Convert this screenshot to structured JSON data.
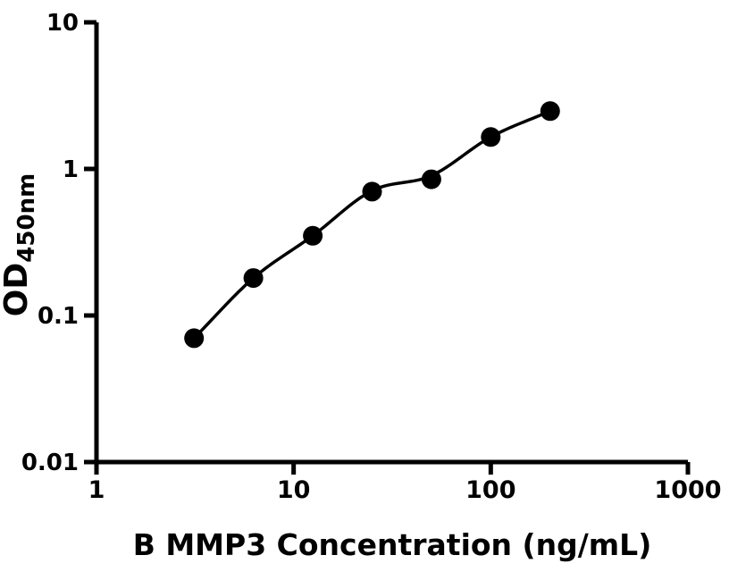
{
  "chart_data": {
    "type": "scatter",
    "title": "",
    "xlabel": "B MMP3 Concentration (ng/mL)",
    "ylabel_main": "OD",
    "ylabel_sub": "450nm",
    "x_scale": "log10",
    "y_scale": "log10",
    "xlim": [
      1,
      1000
    ],
    "ylim": [
      0.01,
      10
    ],
    "grid": false,
    "legend": "none",
    "x_ticks": [
      {
        "value": 1,
        "label": "1"
      },
      {
        "value": 10,
        "label": "10"
      },
      {
        "value": 100,
        "label": "100"
      },
      {
        "value": 1000,
        "label": "1000"
      }
    ],
    "y_ticks": [
      {
        "value": 10,
        "label": "10"
      },
      {
        "value": 1,
        "label": "1"
      },
      {
        "value": 0.1,
        "label": "0.1"
      },
      {
        "value": 0.01,
        "label": "0.01"
      }
    ],
    "series": [
      {
        "name": "standard-curve-points",
        "marker": "filled-circle",
        "x": [
          3.125,
          6.25,
          12.5,
          25,
          50,
          100,
          200
        ],
        "y": [
          0.07,
          0.18,
          0.35,
          0.7,
          0.85,
          1.65,
          2.48
        ]
      }
    ],
    "fit_curve": {
      "name": "fitted-standard-curve",
      "x": [
        3.125,
        6.25,
        12.5,
        25,
        50,
        100,
        200
      ],
      "y": [
        0.07,
        0.18,
        0.35,
        0.71,
        0.9,
        1.65,
        2.48
      ]
    },
    "colors": {
      "background": "#ffffff",
      "axis": "#000000",
      "curve": "#000000",
      "point": "#000000",
      "text": "#000000"
    }
  }
}
